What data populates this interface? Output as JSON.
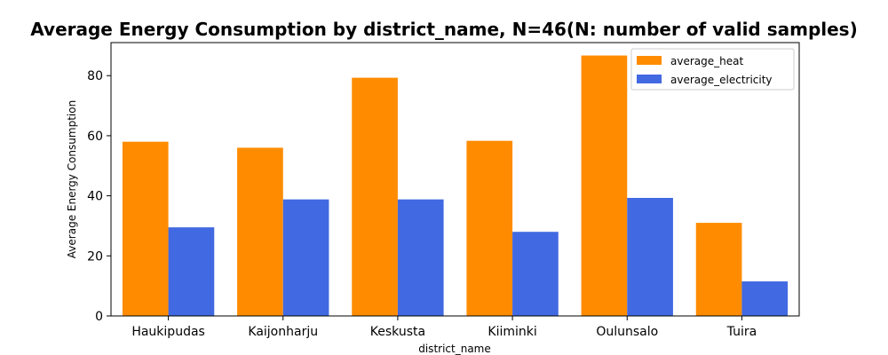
{
  "chart_data": {
    "type": "bar",
    "title": "Average Energy Consumption by district_name, N=46(N: number of valid samples)",
    "xlabel": "district_name",
    "ylabel": "Average Energy Consumption",
    "categories": [
      "Haukipudas",
      "Kaijonharju",
      "Keskusta",
      "Kiiminki",
      "Oulunsalo",
      "Tuira"
    ],
    "series": [
      {
        "name": "average_heat",
        "color": "#ff8c00",
        "values": [
          58.0,
          56.0,
          79.3,
          58.3,
          86.7,
          31.0
        ]
      },
      {
        "name": "average_electricity",
        "color": "#4169e1",
        "values": [
          29.5,
          38.8,
          38.8,
          28.0,
          39.3,
          11.5
        ]
      }
    ],
    "ylim": [
      0,
      91
    ],
    "yticks": [
      0,
      20,
      40,
      60,
      80
    ],
    "grid": false,
    "legend": "top-right"
  }
}
